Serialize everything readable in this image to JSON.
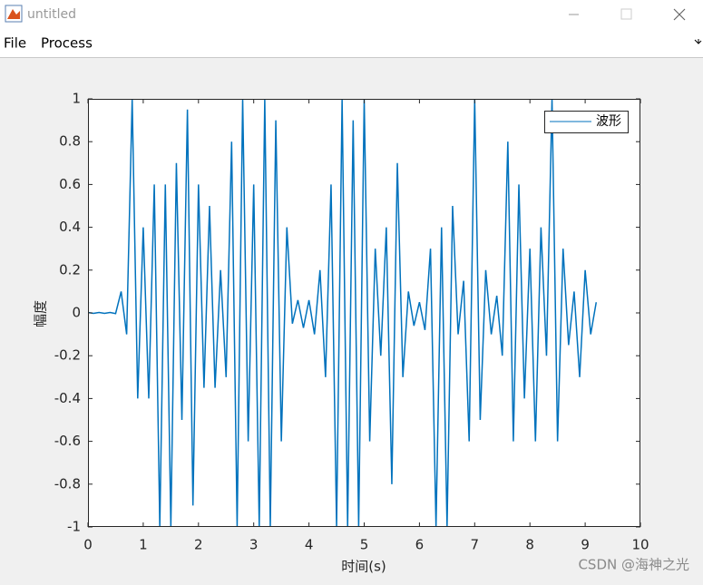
{
  "window": {
    "title": "untitled"
  },
  "menu": {
    "items": [
      "File",
      "Process"
    ]
  },
  "chart_data": {
    "type": "line",
    "xlabel": "时间(s)",
    "ylabel": "幅度",
    "x": [
      0,
      0.1,
      0.2,
      0.3,
      0.4,
      0.5,
      0.6,
      0.7,
      0.8,
      0.9,
      1,
      1.1,
      1.2,
      1.3,
      1.4,
      1.5,
      1.6,
      1.7,
      1.8,
      1.9,
      2,
      2.1,
      2.2,
      2.3,
      2.4,
      2.5,
      2.6,
      2.7,
      2.8,
      2.9,
      3,
      3.1,
      3.2,
      3.3,
      3.4,
      3.5,
      3.6,
      3.7,
      3.8,
      3.9,
      4,
      4.1,
      4.2,
      4.3,
      4.4,
      4.5,
      4.6,
      4.7,
      4.8,
      4.9,
      5,
      5.1,
      5.2,
      5.3,
      5.4,
      5.5,
      5.6,
      5.7,
      5.8,
      5.9,
      6,
      6.1,
      6.2,
      6.3,
      6.4,
      6.5,
      6.6,
      6.7,
      6.8,
      6.9,
      7,
      7.1,
      7.2,
      7.3,
      7.4,
      7.5,
      7.6,
      7.7,
      7.8,
      7.9,
      8,
      8.1,
      8.2,
      8.3,
      8.4,
      8.5,
      8.6,
      8.7,
      8.8,
      8.9,
      9,
      9.1,
      9.2
    ],
    "series": [
      {
        "name": "波形",
        "color": "#0072bd",
        "values": [
          0.002,
          -0.002,
          0.002,
          -0.002,
          0.002,
          -0.003,
          0.1,
          -0.1,
          1,
          -0.4,
          0.4,
          -0.4,
          0.6,
          -1,
          0.6,
          -1,
          0.7,
          -0.5,
          0.95,
          -0.9,
          0.6,
          -0.35,
          0.5,
          -0.35,
          0.2,
          -0.3,
          0.8,
          -1,
          1,
          -0.6,
          0.6,
          -1,
          1,
          -1,
          0.9,
          -0.6,
          0.4,
          -0.05,
          0.06,
          -0.07,
          0.06,
          -0.1,
          0.2,
          -0.3,
          0.6,
          -1,
          1,
          -1,
          0.9,
          -1,
          1,
          -0.6,
          0.3,
          -0.2,
          0.4,
          -0.8,
          0.7,
          -0.3,
          0.1,
          -0.06,
          0.05,
          -0.08,
          0.3,
          -1,
          0.4,
          -1,
          0.5,
          -0.1,
          0.15,
          -0.6,
          1,
          -0.5,
          0.2,
          -0.1,
          0.08,
          -0.2,
          0.8,
          -0.6,
          0.6,
          -0.4,
          0.3,
          -0.6,
          0.4,
          -0.2,
          1,
          -0.6,
          0.3,
          -0.15,
          0.1,
          -0.3,
          0.2,
          -0.1,
          0.05
        ]
      }
    ],
    "xlim": [
      0,
      10
    ],
    "xticks": [
      0,
      1,
      2,
      3,
      4,
      5,
      6,
      7,
      8,
      9,
      10
    ],
    "ylim": [
      -1,
      1
    ],
    "yticks": [
      -1,
      -0.8,
      -0.6,
      -0.4,
      -0.2,
      0,
      0.2,
      0.4,
      0.6,
      0.8,
      1
    ],
    "legend": "northeast"
  },
  "watermark": "CSDN @海神之光"
}
